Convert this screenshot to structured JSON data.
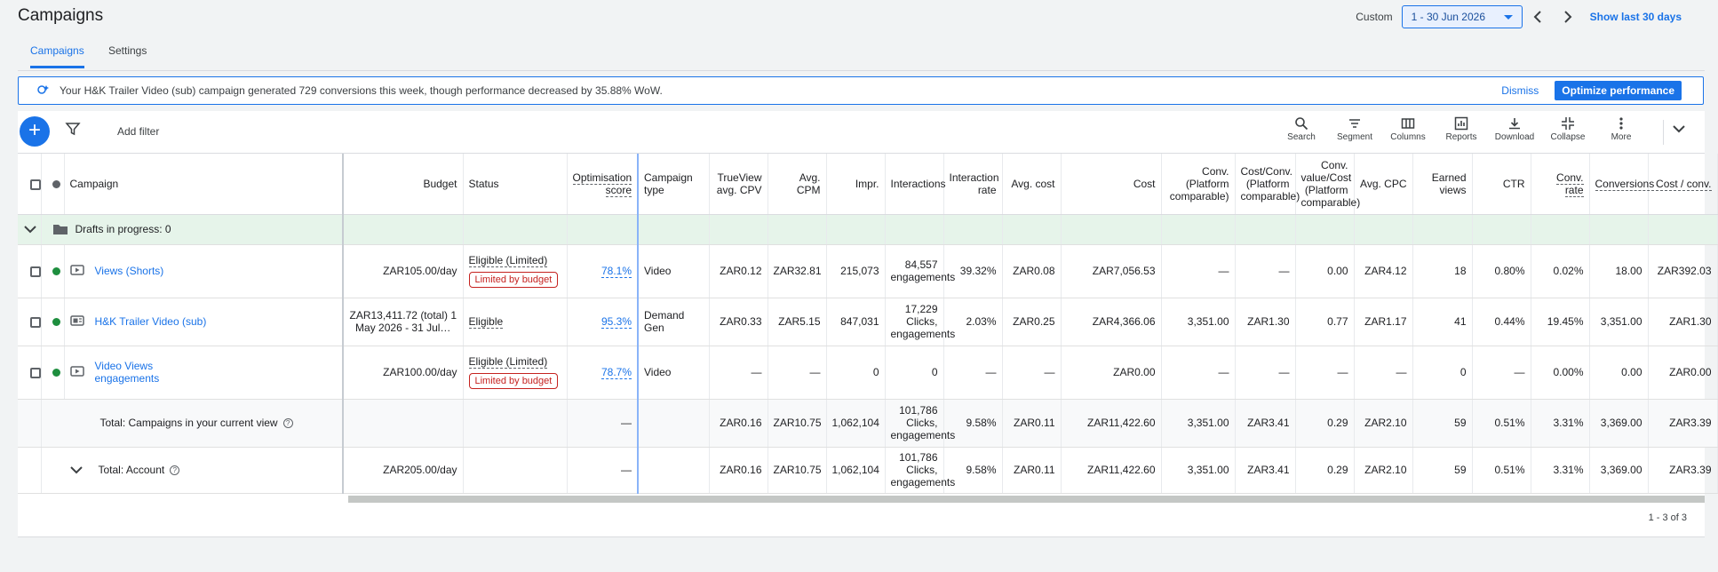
{
  "header": {
    "title": "Campaigns",
    "date_mode": "Custom",
    "date_range": "1 - 30 Jun 2026",
    "show_last": "Show last 30 days"
  },
  "tabs": [
    {
      "label": "Campaigns"
    },
    {
      "label": "Settings"
    }
  ],
  "banner": {
    "text": "Your H&K Trailer Video (sub) campaign generated 729 conversions this week, though performance decreased by 35.88% WoW.",
    "dismiss": "Dismiss",
    "action": "Optimize performance"
  },
  "toolbar": {
    "add": "+",
    "add_filter": "Add filter",
    "tools": [
      "Search",
      "Segment",
      "Columns",
      "Reports",
      "Download",
      "Collapse",
      "More"
    ]
  },
  "columns": {
    "campaign": "Campaign",
    "budget": "Budget",
    "status": "Status",
    "opt_score": "Optimisation score",
    "campaign_type": "Campaign type",
    "trueview_cpv": "TrueView avg. CPV",
    "avg_cpm": "Avg. CPM",
    "impr": "Impr.",
    "interactions": "Interactions",
    "interaction_rate": "Interaction rate",
    "avg_cost": "Avg. cost",
    "cost": "Cost",
    "conv_platform": "Conv. (Platform comparable)",
    "cost_conv_platform": "Cost/Conv. (Platform comparable)",
    "conv_value_cost": "Conv. value/Cost (Platform comparable)",
    "avg_cpc": "Avg. CPC",
    "earned_views": "Earned views",
    "ctr": "CTR",
    "conv_rate": "Conv. rate",
    "conversions": "Conversions",
    "cost_per_conv": "Cost / conv."
  },
  "drafts": {
    "label": "Drafts in progress: 0"
  },
  "rows": [
    {
      "name": "Views (Shorts)",
      "status_color": "#1e8e3e",
      "budget": "ZAR105.00/day",
      "status": "Eligible (Limited)",
      "badge": "Limited by budget",
      "opt_score": "78.1%",
      "type": "Video",
      "cpv": "ZAR0.12",
      "cpm": "ZAR32.81",
      "impr": "215,073",
      "interactions": "84,557 engagements",
      "int_rate": "39.32%",
      "avg_cost": "ZAR0.08",
      "cost": "ZAR7,056.53",
      "conv_pc": "—",
      "cost_conv_pc": "—",
      "conv_val_cost": "0.00",
      "avg_cpc": "ZAR4.12",
      "earned": "18",
      "ctr": "0.80%",
      "conv_rate": "0.02%",
      "conversions": "18.00",
      "cost_conv": "ZAR392.03"
    },
    {
      "name": "H&K Trailer Video (sub)",
      "status_color": "#1e8e3e",
      "budget": "ZAR13,411.72 (total) 1 May 2026 - 31 Jul…",
      "status": "Eligible",
      "badge": "",
      "opt_score": "95.3%",
      "type": "Demand Gen",
      "cpv": "ZAR0.33",
      "cpm": "ZAR5.15",
      "impr": "847,031",
      "interactions": "17,229 Clicks, engagements",
      "int_rate": "2.03%",
      "avg_cost": "ZAR0.25",
      "cost": "ZAR4,366.06",
      "conv_pc": "3,351.00",
      "cost_conv_pc": "ZAR1.30",
      "conv_val_cost": "0.77",
      "avg_cpc": "ZAR1.17",
      "earned": "41",
      "ctr": "0.44%",
      "conv_rate": "19.45%",
      "conversions": "3,351.00",
      "cost_conv": "ZAR1.30"
    },
    {
      "name": "Video Views engagements",
      "status_color": "#1e8e3e",
      "budget": "ZAR100.00/day",
      "status": "Eligible (Limited)",
      "badge": "Limited by budget",
      "opt_score": "78.7%",
      "type": "Video",
      "cpv": "—",
      "cpm": "—",
      "impr": "0",
      "interactions": "0",
      "int_rate": "—",
      "avg_cost": "—",
      "cost": "ZAR0.00",
      "conv_pc": "—",
      "cost_conv_pc": "—",
      "conv_val_cost": "—",
      "avg_cpc": "—",
      "earned": "0",
      "ctr": "—",
      "conv_rate": "0.00%",
      "conversions": "0.00",
      "cost_conv": "ZAR0.00"
    }
  ],
  "total_view": {
    "label": "Total: Campaigns in your current view",
    "budget": "",
    "opt_score": "—",
    "cpv": "ZAR0.16",
    "cpm": "ZAR10.75",
    "impr": "1,062,104",
    "interactions": "101,786 Clicks, engagements",
    "int_rate": "9.58%",
    "avg_cost": "ZAR0.11",
    "cost": "ZAR11,422.60",
    "conv_pc": "3,351.00",
    "cost_conv_pc": "ZAR3.41",
    "conv_val_cost": "0.29",
    "avg_cpc": "ZAR2.10",
    "earned": "59",
    "ctr": "0.51%",
    "conv_rate": "3.31%",
    "conversions": "3,369.00",
    "cost_conv": "ZAR3.39"
  },
  "total_account": {
    "label": "Total: Account",
    "budget": "ZAR205.00/day",
    "opt_score": "—",
    "cpv": "ZAR0.16",
    "cpm": "ZAR10.75",
    "impr": "1,062,104",
    "interactions": "101,786 Clicks, engagements",
    "int_rate": "9.58%",
    "avg_cost": "ZAR0.11",
    "cost": "ZAR11,422.60",
    "conv_pc": "3,351.00",
    "cost_conv_pc": "ZAR3.41",
    "conv_val_cost": "0.29",
    "avg_cpc": "ZAR2.10",
    "earned": "59",
    "ctr": "0.51%",
    "conv_rate": "3.31%",
    "conversions": "3,369.00",
    "cost_conv": "ZAR3.39"
  },
  "pagination": "1 - 3 of 3"
}
